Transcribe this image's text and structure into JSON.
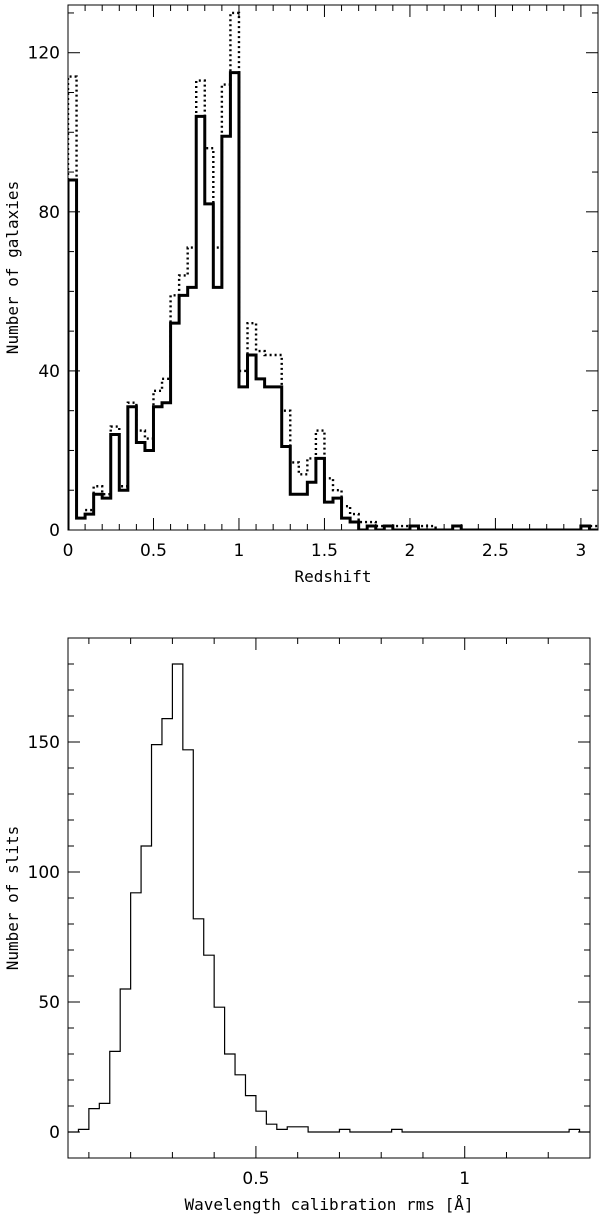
{
  "chart_data": [
    {
      "type": "step",
      "title": "",
      "xlabel": "Redshift",
      "ylabel": "Number of galaxies",
      "xlim": [
        0,
        3.1
      ],
      "ylim": [
        0,
        132
      ],
      "bin_width": 0.05,
      "x_ticks": [
        0,
        0.5,
        1,
        1.5,
        2,
        2.5,
        3
      ],
      "x_tick_labels": [
        "0",
        "0.5",
        "1",
        "1.5",
        "2",
        "2.5",
        "3"
      ],
      "y_ticks": [
        0,
        40,
        80,
        120
      ],
      "y_tick_labels": [
        "0",
        "40",
        "80",
        "120"
      ],
      "series": [
        {
          "style": "solid-thick",
          "bin_starts": [
            0,
            0.05,
            0.1,
            0.15,
            0.2,
            0.25,
            0.3,
            0.35,
            0.4,
            0.45,
            0.5,
            0.55,
            0.6,
            0.65,
            0.7,
            0.75,
            0.8,
            0.85,
            0.9,
            0.95,
            1.0,
            1.05,
            1.1,
            1.15,
            1.2,
            1.25,
            1.3,
            1.35,
            1.4,
            1.45,
            1.5,
            1.55,
            1.6,
            1.65,
            1.7,
            1.75,
            1.8,
            1.85,
            1.9,
            1.95,
            2.0,
            2.05,
            2.1,
            2.15,
            2.2,
            2.25,
            2.3,
            2.35,
            2.4,
            2.45,
            2.5,
            2.55,
            2.6,
            2.65,
            2.7,
            2.75,
            2.8,
            2.85,
            2.9,
            2.95,
            3.0,
            3.05
          ],
          "values": [
            88,
            3,
            4,
            9,
            8,
            24,
            10,
            31,
            22,
            20,
            31,
            32,
            52,
            59,
            61,
            104,
            82,
            61,
            99,
            115,
            36,
            44,
            38,
            36,
            36,
            21,
            9,
            9,
            12,
            18,
            7,
            8,
            3,
            2,
            0,
            1,
            0,
            1,
            0,
            0,
            1,
            0,
            0,
            0,
            0,
            1,
            0,
            0,
            0,
            0,
            0,
            0,
            0,
            0,
            0,
            0,
            0,
            0,
            0,
            0,
            1,
            0
          ]
        },
        {
          "style": "dotted",
          "bin_starts": [
            0,
            0.05,
            0.1,
            0.15,
            0.2,
            0.25,
            0.3,
            0.35,
            0.4,
            0.45,
            0.5,
            0.55,
            0.6,
            0.65,
            0.7,
            0.75,
            0.8,
            0.85,
            0.9,
            0.95,
            1.0,
            1.05,
            1.1,
            1.15,
            1.2,
            1.25,
            1.3,
            1.35,
            1.4,
            1.45,
            1.5,
            1.55,
            1.6,
            1.65,
            1.7,
            1.75,
            1.8,
            1.85,
            1.9,
            1.95,
            2.0,
            2.05,
            2.1,
            2.15,
            2.2,
            2.25,
            2.3,
            2.35,
            2.4,
            2.45,
            2.5,
            2.55,
            2.6,
            2.65,
            2.7,
            2.75,
            2.8,
            2.85,
            2.9,
            2.95,
            3.0,
            3.05
          ],
          "values": [
            114,
            3,
            5,
            11,
            9,
            26,
            11,
            32,
            25,
            23,
            35,
            38,
            59,
            64,
            71,
            113,
            96,
            71,
            112,
            130,
            40,
            52,
            45,
            44,
            44,
            30,
            17,
            14,
            18,
            25,
            13,
            10,
            6,
            4,
            2,
            2,
            1,
            1,
            1,
            1,
            1,
            1,
            1,
            0,
            0,
            1,
            0,
            0,
            0,
            0,
            0,
            0,
            0,
            0,
            0,
            0,
            0,
            0,
            0,
            0,
            1,
            1
          ]
        }
      ]
    },
    {
      "type": "step",
      "title": "",
      "xlabel": "Wavelength calibration rms [Å]",
      "ylabel": "Number of slits",
      "xlim": [
        0.05,
        1.3
      ],
      "ylim": [
        -10,
        190
      ],
      "bin_width": 0.025,
      "x_ticks": [
        0.5,
        1
      ],
      "x_tick_labels": [
        "0.5",
        "1"
      ],
      "y_ticks": [
        0,
        50,
        100,
        150
      ],
      "y_tick_labels": [
        "0",
        "50",
        "100",
        "150"
      ],
      "series": [
        {
          "style": "solid-thin",
          "bin_starts": [
            0.05,
            0.075,
            0.1,
            0.125,
            0.15,
            0.175,
            0.2,
            0.225,
            0.25,
            0.275,
            0.3,
            0.325,
            0.35,
            0.375,
            0.4,
            0.425,
            0.45,
            0.475,
            0.5,
            0.525,
            0.55,
            0.575,
            0.6,
            0.625,
            0.65,
            0.675,
            0.7,
            0.725,
            0.75,
            0.775,
            0.8,
            0.825,
            0.85,
            0.875,
            0.9,
            0.925,
            0.95,
            0.975,
            1.0,
            1.025,
            1.05,
            1.075,
            1.1,
            1.125,
            1.15,
            1.175,
            1.2,
            1.225,
            1.25,
            1.275
          ],
          "values": [
            0,
            1,
            9,
            11,
            31,
            55,
            92,
            110,
            149,
            159,
            180,
            147,
            82,
            68,
            48,
            30,
            22,
            14,
            8,
            3,
            1,
            2,
            2,
            0,
            0,
            0,
            1,
            0,
            0,
            0,
            0,
            1,
            0,
            0,
            0,
            0,
            0,
            0,
            0,
            0,
            0,
            0,
            0,
            0,
            0,
            0,
            0,
            0,
            1,
            0
          ]
        }
      ]
    }
  ]
}
